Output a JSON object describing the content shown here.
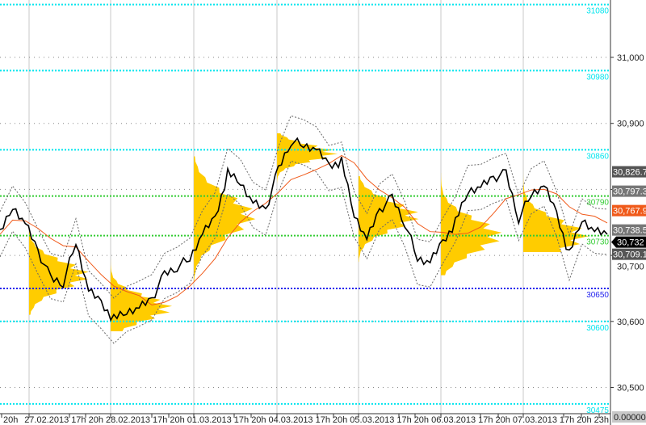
{
  "chart_data": {
    "type": "line",
    "y_axis": {
      "ticks": [
        31000,
        30900,
        30800,
        30700,
        30600,
        30500
      ],
      "tick_labels": [
        "31,000",
        "30,900",
        "",
        "30,700",
        "30,600",
        "30,500"
      ],
      "range": [
        30468,
        31087
      ],
      "grid": "dotted"
    },
    "x_axis": {
      "labels": [
        "20h",
        "27.02.2013",
        "17h",
        "20h",
        "28.02.2013",
        "17h",
        "20h",
        "01.03.2013",
        "17h",
        "20h",
        "04.03.2013",
        "17h",
        "20h",
        "05.03.2013",
        "17h",
        "20h",
        "06.03.2013",
        "17h",
        "20h",
        "07.03.2013",
        "17h",
        "20h",
        "23h"
      ]
    },
    "days": [
      "27.02.2013",
      "28.02.2013",
      "01.03.2013",
      "04.03.2013",
      "05.03.2013",
      "06.03.2013",
      "07.03.2013"
    ],
    "price_series": [
      30732,
      30775,
      30750,
      30707,
      30665,
      30659,
      30720,
      30646,
      30628,
      30603,
      30616,
      30622,
      30634,
      30671,
      30683,
      30695,
      30732,
      30756,
      30824,
      30812,
      30781,
      30769,
      30830,
      30873,
      30867,
      30860,
      30836,
      30842,
      30763,
      30726,
      30769,
      30787,
      30750,
      30695,
      30689,
      30720,
      30750,
      30799,
      30805,
      30818,
      30824,
      30756,
      30793,
      30805,
      30763,
      30701,
      30756,
      30738,
      30732
    ],
    "volume_profiles": [
      {
        "day": "27.02.2013",
        "low": 30610,
        "high": 30740,
        "poc": 30670
      },
      {
        "day": "28.02.2013",
        "low": 30585,
        "high": 30700,
        "poc": 30620
      },
      {
        "day": "01.03.2013",
        "low": 30660,
        "high": 30850,
        "poc": 30760
      },
      {
        "day": "04.03.2013",
        "low": 30810,
        "high": 30885,
        "poc": 30855
      },
      {
        "day": "05.03.2013",
        "low": 30690,
        "high": 30820,
        "poc": 30760
      },
      {
        "day": "06.03.2013",
        "low": 30670,
        "high": 30825,
        "poc": 30730
      },
      {
        "day": "07.03.2013",
        "low": 30705,
        "high": 30850,
        "poc": 30730
      }
    ],
    "levels": [
      {
        "value": 31080,
        "label": "31080",
        "color": "#00e5ee"
      },
      {
        "value": 30980,
        "label": "30980",
        "color": "#00e5ee"
      },
      {
        "value": 30860,
        "label": "30860",
        "color": "#00e5ee"
      },
      {
        "value": 30790,
        "label": "30790",
        "color": "#33cc33"
      },
      {
        "value": 30730,
        "label": "30730",
        "color": "#33cc33"
      },
      {
        "value": 30650,
        "label": "30650",
        "color": "#2222ee"
      },
      {
        "value": 30600,
        "label": "30600",
        "color": "#00e5ee"
      },
      {
        "value": 30475,
        "label": "30475",
        "color": "#00e5ee"
      }
    ],
    "price_tags": [
      {
        "value": 30826.7,
        "label": "30,826.7",
        "color": "#555555"
      },
      {
        "value": 30797.3,
        "label": "30,797.3",
        "color": "#777777"
      },
      {
        "value": 30767.9,
        "label": "30,767.9",
        "color": "#f05a1a"
      },
      {
        "value": 30738.5,
        "label": "30,738.5",
        "color": "#777777"
      },
      {
        "value": 30732,
        "label": "30,732",
        "color": "#000000"
      },
      {
        "value": 30709.1,
        "label": "30,709.1",
        "color": "#555555"
      }
    ],
    "indicator_readout": "0.00000",
    "colors": {
      "price": "#000000",
      "profile": "#ffcc00",
      "vwap": "#f05a1a",
      "bands": "#666666"
    }
  }
}
